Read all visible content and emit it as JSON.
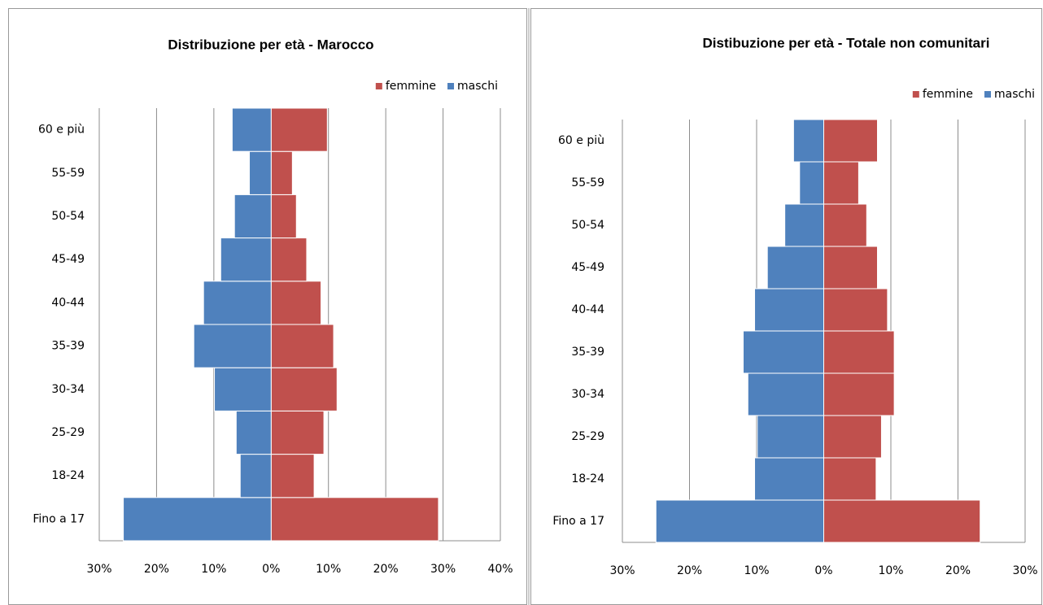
{
  "chart_data": [
    {
      "type": "bar",
      "orientation": "horizontal",
      "stacked": true,
      "title": "Distribuzione per età - Marocco",
      "categories": [
        "Fino a 17",
        "18-24",
        "25-29",
        "30-34",
        "35-39",
        "40-44",
        "45-49",
        "50-54",
        "55-59",
        "60 e più"
      ],
      "series": [
        {
          "name": "femmine",
          "color": "#c0504d",
          "values": [
            29.2,
            7.5,
            9.2,
            11.5,
            10.9,
            8.7,
            6.2,
            4.4,
            3.7,
            9.8
          ]
        },
        {
          "name": "maschi",
          "color": "#4f81bd",
          "values": [
            -25.8,
            -5.4,
            -6.1,
            -9.9,
            -13.5,
            -11.8,
            -8.8,
            -6.4,
            -3.8,
            -6.8
          ]
        }
      ],
      "xlim": [
        -30,
        40
      ],
      "xticks": [
        {
          "value": -30,
          "label": "30%"
        },
        {
          "value": -20,
          "label": "20%"
        },
        {
          "value": -10,
          "label": "10%"
        },
        {
          "value": 0,
          "label": "0%"
        },
        {
          "value": 10,
          "label": "10%"
        },
        {
          "value": 20,
          "label": "20%"
        },
        {
          "value": 30,
          "label": "30%"
        },
        {
          "value": 40,
          "label": "40%"
        }
      ],
      "grid": true,
      "legend": "top-right"
    },
    {
      "type": "bar",
      "orientation": "horizontal",
      "stacked": true,
      "title": "Distibuzione per età - Totale non comunitari",
      "categories": [
        "Fino a 17",
        "18-24",
        "25-29",
        "30-34",
        "35-39",
        "40-44",
        "45-49",
        "50-54",
        "55-59",
        "60 e più"
      ],
      "series": [
        {
          "name": "femmine",
          "color": "#c0504d",
          "values": [
            23.3,
            7.8,
            8.6,
            10.5,
            10.5,
            9.5,
            8.0,
            6.4,
            5.2,
            8.0
          ]
        },
        {
          "name": "maschi",
          "color": "#4f81bd",
          "values": [
            -25.0,
            -10.3,
            -9.9,
            -11.3,
            -12.0,
            -10.3,
            -8.4,
            -5.8,
            -3.6,
            -4.5
          ]
        }
      ],
      "xlim": [
        -30,
        30
      ],
      "xticks": [
        {
          "value": -30,
          "label": "30%"
        },
        {
          "value": -20,
          "label": "20%"
        },
        {
          "value": -10,
          "label": "10%"
        },
        {
          "value": 0,
          "label": "0%"
        },
        {
          "value": 10,
          "label": "10%"
        },
        {
          "value": 20,
          "label": "20%"
        },
        {
          "value": 30,
          "label": "30%"
        }
      ],
      "grid": true,
      "legend": "top-right"
    }
  ]
}
